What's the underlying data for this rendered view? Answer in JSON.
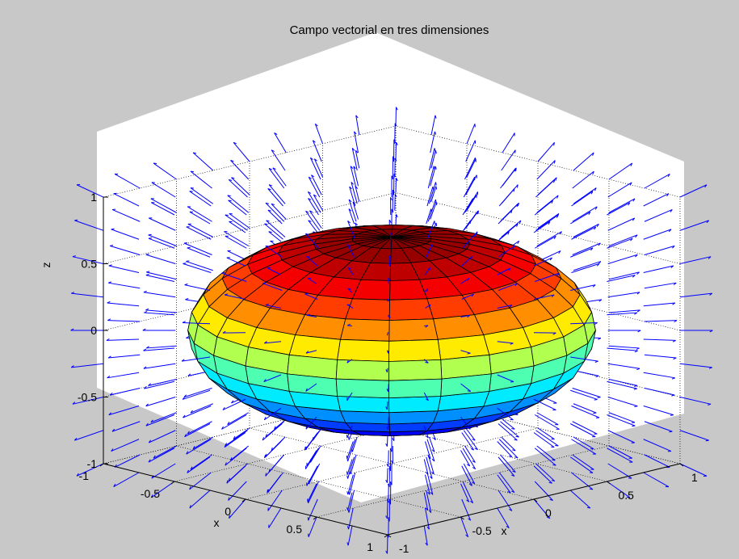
{
  "chart_data": {
    "type": "3d-surface-quiver",
    "title": "Campo vectorial en tres dimensiones",
    "xlabel": "x",
    "ylabel": "x",
    "zlabel": "z",
    "xlim": [
      -1,
      1
    ],
    "ylim": [
      -1,
      1
    ],
    "zlim": [
      -1,
      1
    ],
    "x_ticks": [
      "-1",
      "-0.5",
      "0",
      "0.5",
      "1"
    ],
    "y_ticks": [
      "-1",
      "-0.5",
      "0",
      "0.5",
      "1"
    ],
    "z_ticks": [
      "-1",
      "-0.5",
      "0",
      "0.5",
      "1"
    ],
    "grid": true,
    "surface": {
      "shape": "ellipsoid",
      "semi_axes": {
        "x": 1,
        "y": 1,
        "z": 0.7
      },
      "meridians": 24,
      "parallels": 16,
      "colormap": "jet"
    },
    "vector_field": {
      "grid": [
        -1,
        -0.75,
        -0.5,
        -0.25,
        0,
        0.25,
        0.5,
        0.75,
        1
      ],
      "color": "#0000ff"
    },
    "colors": {
      "background": "#c8c8c8",
      "axes": "#ffffff",
      "vectors": "#0000ff"
    }
  }
}
